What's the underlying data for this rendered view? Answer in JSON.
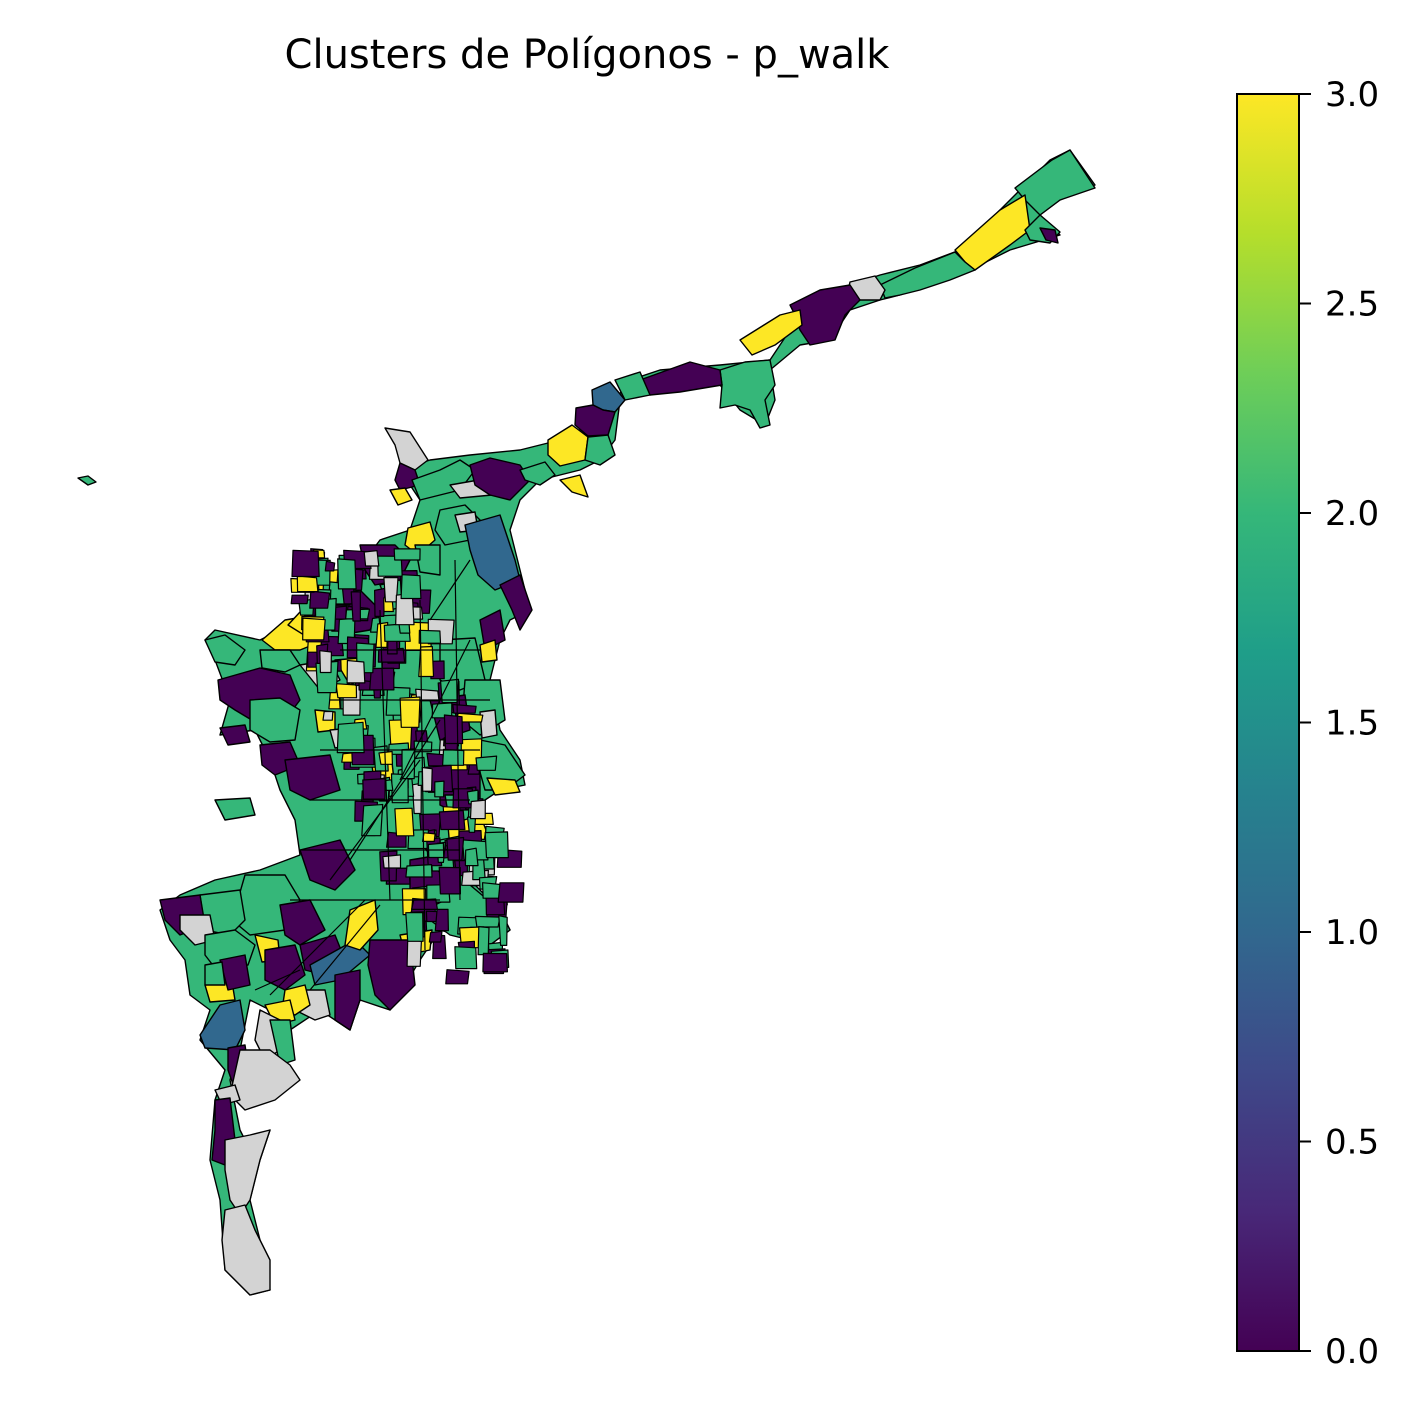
{
  "title": "Clusters de Polígonos - p_walk",
  "colormap": {
    "name": "viridis",
    "stops": [
      "#440154",
      "#482878",
      "#3e4989",
      "#31688e",
      "#26828e",
      "#1f9e89",
      "#35b779",
      "#6ece58",
      "#b5de2b",
      "#fde725"
    ],
    "min": 0.0,
    "max": 3.0
  },
  "colorbar": {
    "ticks": [
      "0.0",
      "0.5",
      "1.0",
      "1.5",
      "2.0",
      "2.5",
      "3.0"
    ]
  },
  "cluster_colors": {
    "0": "#440154",
    "1": "#31688e",
    "2": "#35b779",
    "3": "#fde725",
    "missing": "#d3d3d3"
  },
  "map": {
    "edge_color": "#000000",
    "missing_value_color": "#d3d3d3"
  }
}
